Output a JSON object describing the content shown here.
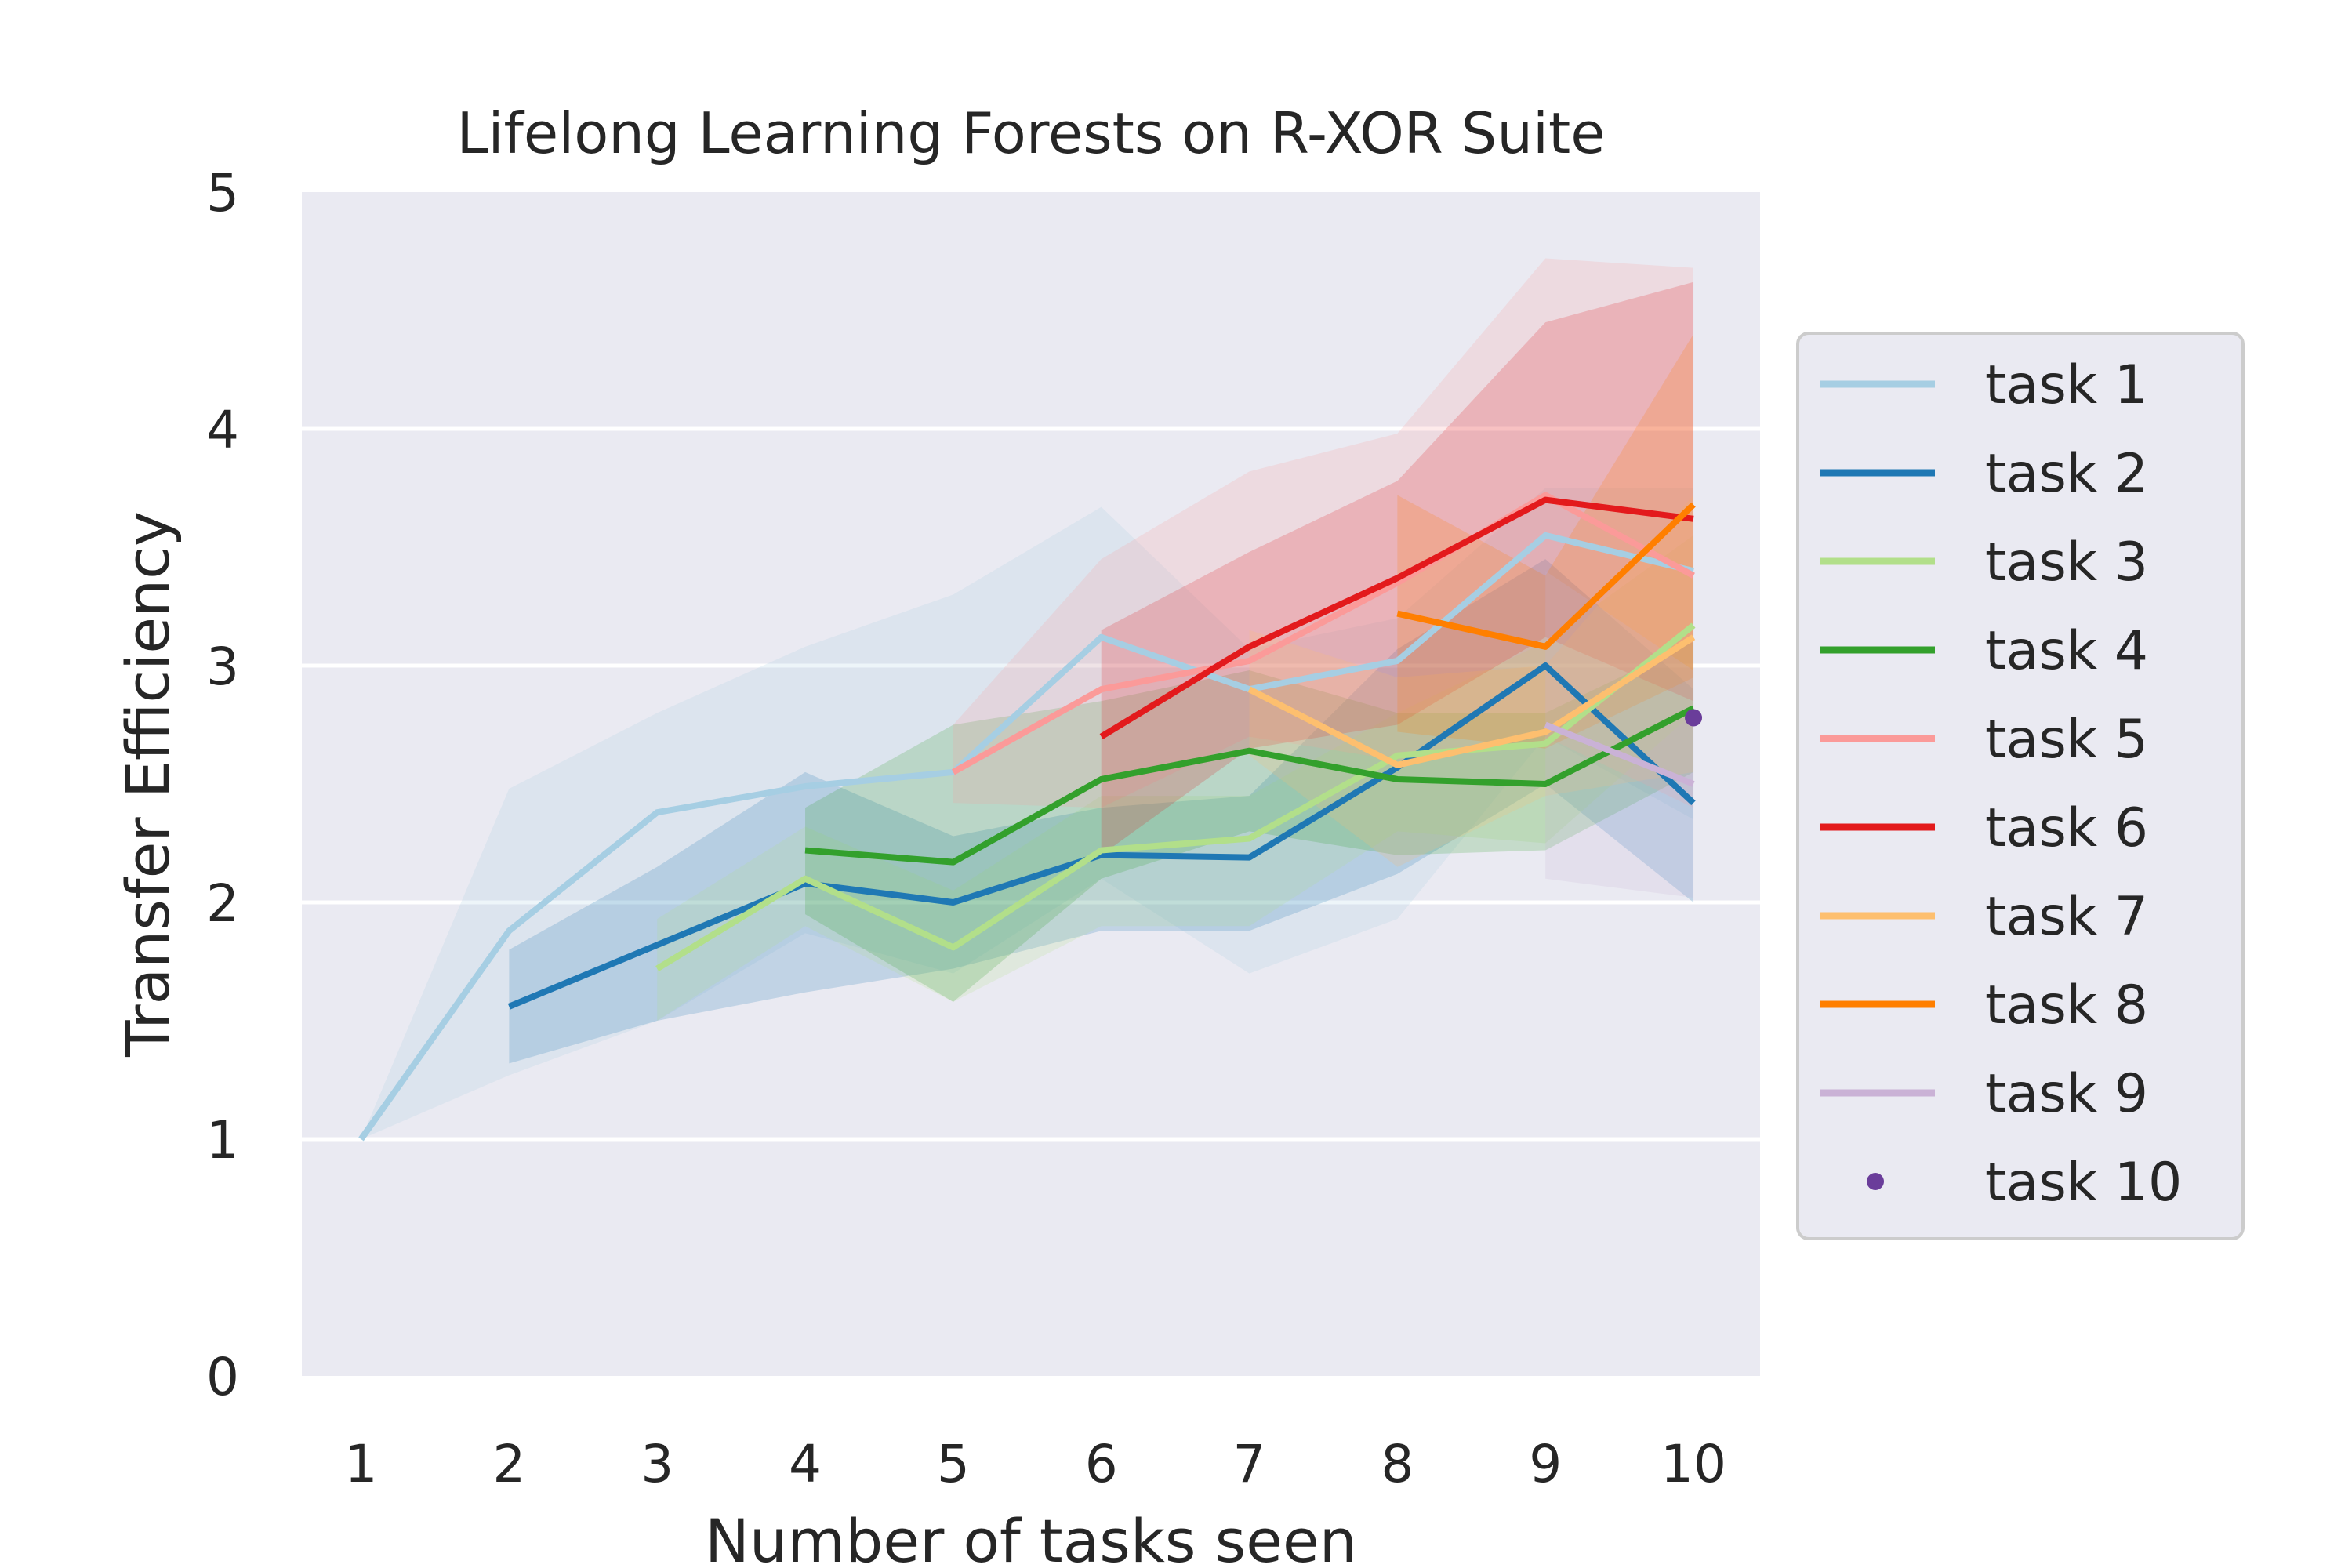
{
  "chart_data": {
    "type": "line",
    "title": "Lifelong Learning Forests on R-XOR Suite",
    "xlabel": "Number of tasks seen",
    "ylabel": "Transfer Efficiency",
    "x_ticks": [
      "1",
      "2",
      "3",
      "4",
      "5",
      "6",
      "7",
      "8",
      "9",
      "10"
    ],
    "y_ticks": [
      "0",
      "1",
      "2",
      "3",
      "4",
      "5"
    ],
    "xlim": [
      0.6,
      10.45
    ],
    "ylim": [
      0,
      5
    ],
    "grid": true,
    "legend_position": "right-outside",
    "series": [
      {
        "name": "task 1",
        "color": "#a6cee3",
        "start": 1,
        "values": [
          1.0,
          1.88,
          2.38,
          2.49,
          2.55,
          3.12,
          2.9,
          3.02,
          3.55,
          3.4
        ],
        "lower": [
          1.0,
          1.27,
          1.5,
          1.87,
          1.7,
          2.1,
          1.7,
          1.93,
          2.7,
          2.35
        ],
        "upper": [
          1.0,
          2.48,
          2.8,
          3.08,
          3.3,
          3.67,
          3.07,
          3.2,
          3.75,
          3.75
        ]
      },
      {
        "name": "task 2",
        "color": "#1f78b4",
        "start": 2,
        "values": [
          1.56,
          1.82,
          2.08,
          2.0,
          2.2,
          2.19,
          2.57,
          3.0,
          2.42
        ],
        "lower": [
          1.32,
          1.5,
          1.62,
          1.72,
          1.88,
          1.88,
          2.12,
          2.5,
          2.0
        ],
        "upper": [
          1.8,
          2.15,
          2.55,
          2.28,
          2.4,
          2.45,
          3.07,
          3.45,
          2.9
        ]
      },
      {
        "name": "task 3",
        "color": "#b2df8a",
        "start": 3,
        "values": [
          1.72,
          2.1,
          1.81,
          2.22,
          2.27,
          2.62,
          2.67,
          3.17
        ],
        "lower": [
          1.5,
          1.9,
          1.58,
          1.9,
          1.9,
          2.3,
          2.25,
          2.8
        ],
        "upper": [
          1.93,
          2.32,
          2.05,
          2.45,
          2.45,
          2.8,
          3.1,
          3.55
        ]
      },
      {
        "name": "task 4",
        "color": "#33a02c",
        "start": 4,
        "values": [
          2.22,
          2.17,
          2.52,
          2.64,
          2.52,
          2.5,
          2.82
        ],
        "lower": [
          1.95,
          1.58,
          2.1,
          2.3,
          2.2,
          2.22,
          2.55
        ],
        "upper": [
          2.4,
          2.75,
          2.85,
          2.98,
          2.8,
          2.8,
          3.1
        ]
      },
      {
        "name": "task 5",
        "color": "#fb9a99",
        "start": 5,
        "values": [
          2.55,
          2.9,
          3.02,
          3.35,
          3.72,
          3.38
        ],
        "lower": [
          2.42,
          2.4,
          2.7,
          2.6,
          2.7,
          2.4
        ],
        "upper": [
          2.75,
          3.45,
          3.82,
          3.98,
          4.72,
          4.68
        ]
      },
      {
        "name": "task 6",
        "color": "#e31a1c",
        "start": 6,
        "values": [
          2.7,
          3.08,
          3.37,
          3.7,
          3.62
        ],
        "lower": [
          2.2,
          2.65,
          2.75,
          3.12,
          2.85
        ],
        "upper": [
          3.15,
          3.48,
          3.78,
          4.45,
          4.62
        ]
      },
      {
        "name": "task 7",
        "color": "#fdbf6f",
        "start": 7,
        "values": [
          2.9,
          2.58,
          2.72,
          3.12
        ],
        "lower": [
          2.62,
          2.15,
          2.45,
          2.55
        ],
        "upper": [
          3.15,
          2.95,
          3.0,
          3.72
        ]
      },
      {
        "name": "task 8",
        "color": "#ff7f00",
        "start": 8,
        "values": [
          3.22,
          3.08,
          3.68
        ],
        "lower": [
          2.72,
          2.65,
          2.95
        ],
        "upper": [
          3.72,
          3.38,
          4.4
        ]
      },
      {
        "name": "task 9",
        "color": "#cab2d6",
        "start": 9,
        "values": [
          2.75,
          2.5
        ],
        "lower": [
          2.1,
          2.02
        ],
        "upper": [
          3.4,
          2.98
        ]
      },
      {
        "name": "task 10",
        "color": "#6a3d9a",
        "start": 10,
        "marker_only": true,
        "values": [
          2.78
        ]
      }
    ]
  }
}
